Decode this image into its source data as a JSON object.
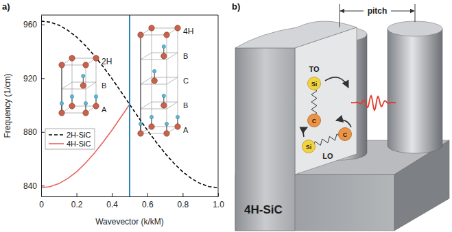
{
  "chart_data": {
    "type": "line",
    "title": "a)",
    "xlabel": "Wavevector (k/kM)",
    "ylabel": "Frequency (1/cm)",
    "xlim": [
      0,
      1
    ],
    "ylim": [
      832,
      967
    ],
    "xticks": [
      0,
      0.2,
      0.4,
      0.6,
      0.8,
      {
        "value": 1,
        "label": "1.0"
      }
    ],
    "yticks": [
      840,
      880,
      920,
      960
    ],
    "grid": false,
    "legend": "center left",
    "series": [
      {
        "name": "2H-SiC",
        "color": "#000000",
        "line_style": "dashed",
        "x": [
          0,
          0.05,
          0.1,
          0.15,
          0.2,
          0.25,
          0.3,
          0.35,
          0.4,
          0.45,
          0.5,
          0.55,
          0.6,
          0.65,
          0.7,
          0.75,
          0.8,
          0.85,
          0.9,
          0.95,
          1
        ],
        "values": [
          962.5,
          961.7,
          959.5,
          955.7,
          950.7,
          944.3,
          936.9,
          928.6,
          919.7,
          910.2,
          900.5,
          890.8,
          881.3,
          872.4,
          864.1,
          856.7,
          850.3,
          845.3,
          841.5,
          839.3,
          838.5
        ]
      },
      {
        "name": "4H-SiC",
        "color": "#e8635f",
        "line_style": "solid",
        "x": [
          0,
          0.05,
          0.1,
          0.15,
          0.2,
          0.25,
          0.3,
          0.35,
          0.4,
          0.45,
          0.5
        ],
        "values": [
          838.5,
          839.3,
          841.5,
          845.3,
          850.3,
          856.7,
          864.1,
          872.4,
          881.3,
          890.8,
          900.5
        ]
      }
    ],
    "vertical_lines": [
      0.5
    ],
    "insets": [
      {
        "label": "2H",
        "layers": [
          "B",
          "A"
        ]
      },
      {
        "label": "4H",
        "layers": [
          "B",
          "C",
          "B",
          "A"
        ]
      }
    ]
  },
  "diagram": {
    "title": "b)",
    "pitch": "pitch",
    "substrate": "4H-SiC",
    "modes": [
      {
        "label": "TO",
        "atoms": [
          "Si",
          "C"
        ]
      },
      {
        "label": "LO",
        "atoms": [
          "Si",
          "C"
        ]
      }
    ]
  }
}
